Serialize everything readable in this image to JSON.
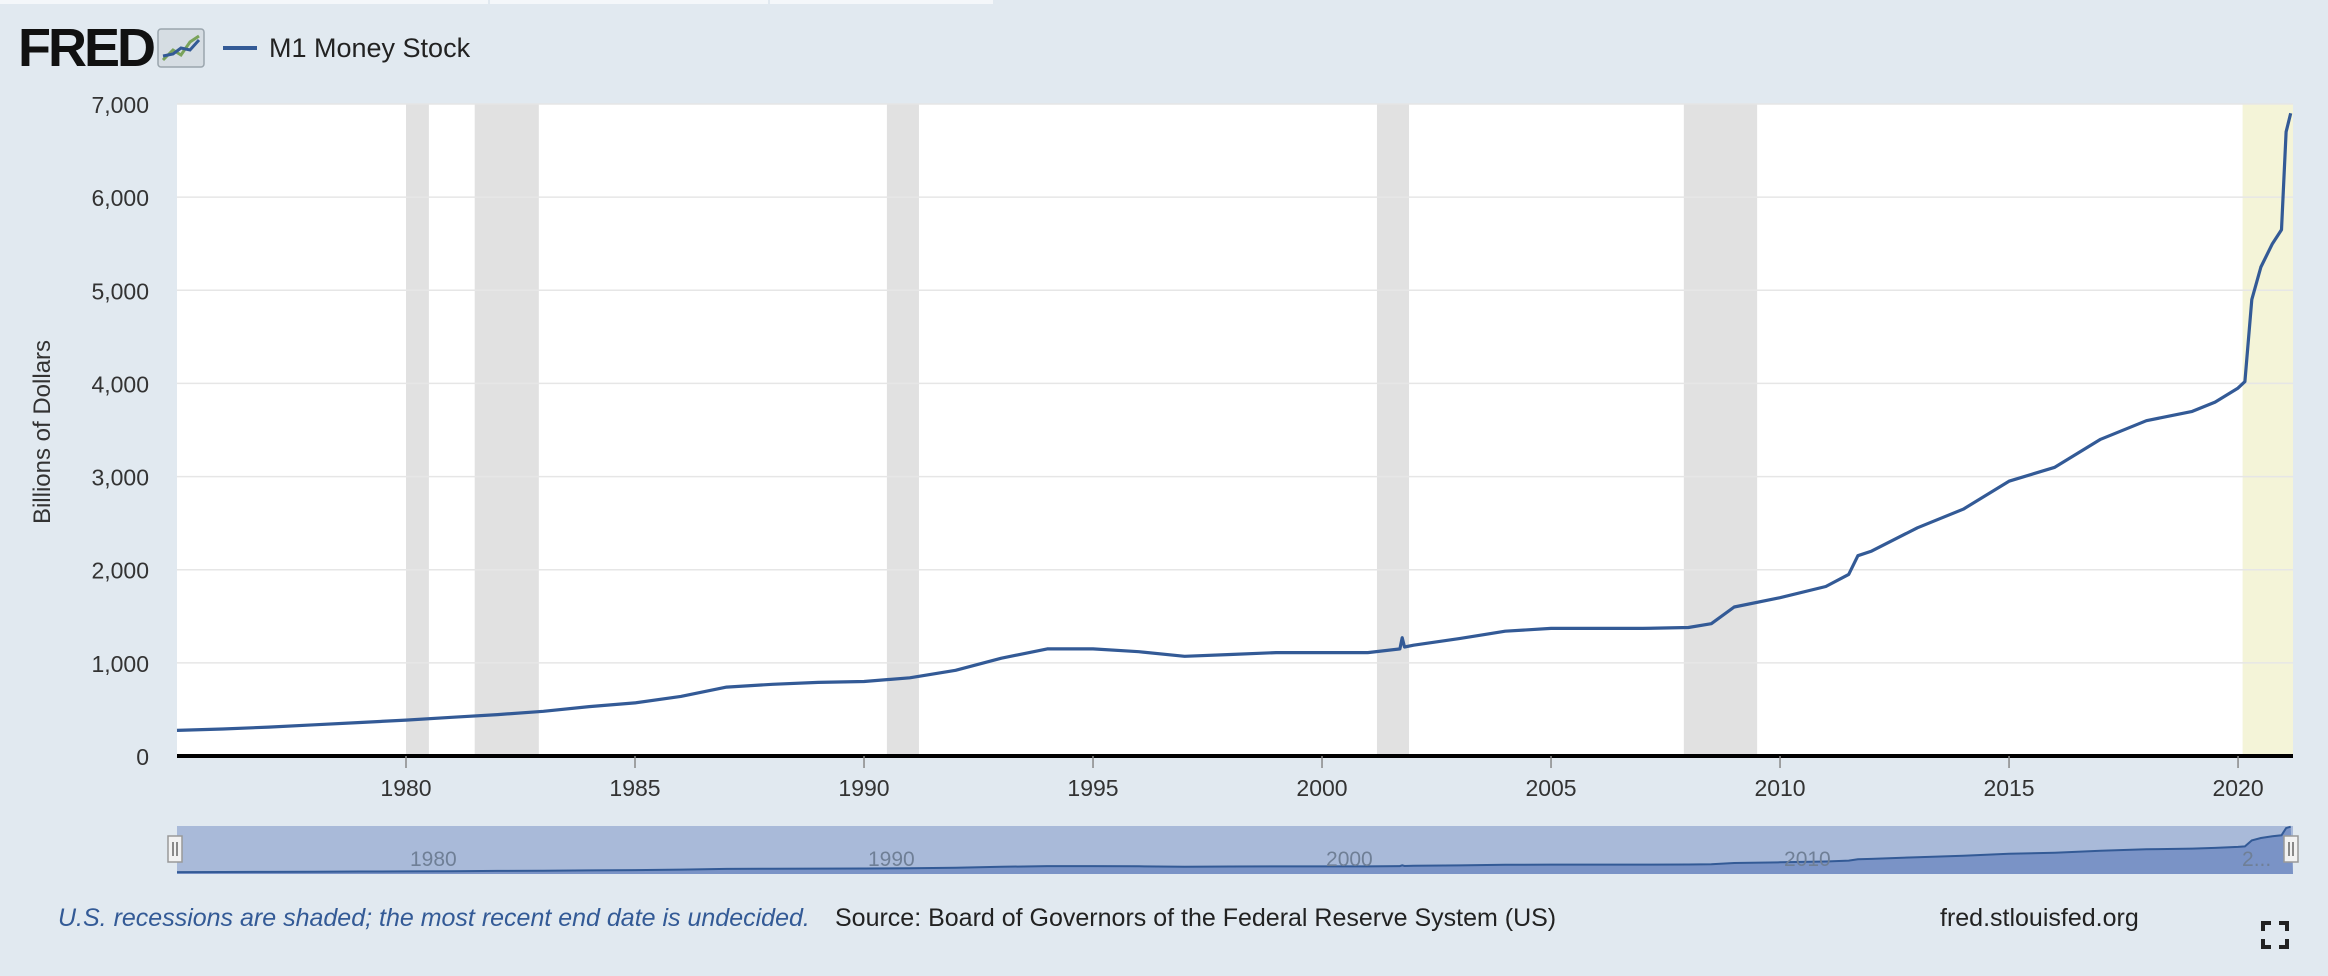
{
  "header": {
    "logo_text": "FRED",
    "series_label": "M1 Money Stock"
  },
  "footer": {
    "recession_note": "U.S. recessions are shaded; the most recent end date is undecided.",
    "source": "Source: Board of Governors of the Federal Reserve System (US)",
    "site": "fred.stlouisfed.org"
  },
  "colors": {
    "series": "#335a96",
    "recession": "#e1e1e1",
    "recent_recession": "#f4f4d8",
    "navigator_fill": "#a9bad9",
    "note_text": "#335a96"
  },
  "icons": {
    "logo_graph": "line-chart-icon",
    "fullscreen": "fullscreen-icon",
    "handles": "navigator-handle-icon"
  },
  "chart_data": {
    "type": "line",
    "title": "",
    "ylabel": "Billions of Dollars",
    "xlabel": "",
    "xlim": [
      1975.0,
      2021.2
    ],
    "ylim": [
      0,
      7000
    ],
    "yticks": [
      0,
      1000,
      2000,
      3000,
      4000,
      5000,
      6000,
      7000
    ],
    "ytick_labels": [
      "0",
      "1,000",
      "2,000",
      "3,000",
      "4,000",
      "5,000",
      "6,000",
      "7,000"
    ],
    "xticks": [
      1980,
      1985,
      1990,
      1995,
      2000,
      2005,
      2010,
      2015,
      2020
    ],
    "xtick_labels": [
      "1980",
      "1985",
      "1990",
      "1995",
      "2000",
      "2005",
      "2010",
      "2015",
      "2020"
    ],
    "navigator_labels": [
      "1980",
      "1990",
      "2000",
      "2010",
      "2..."
    ],
    "grid": true,
    "legend": "top-left",
    "recessions": [
      {
        "start": 1980.0,
        "end": 1980.5
      },
      {
        "start": 1981.5,
        "end": 1982.9
      },
      {
        "start": 1990.5,
        "end": 1991.2
      },
      {
        "start": 2001.2,
        "end": 2001.9
      },
      {
        "start": 2007.9,
        "end": 2009.5
      },
      {
        "start": 2020.1,
        "end": 2021.2,
        "recent": true
      }
    ],
    "series": [
      {
        "name": "M1 Money Stock",
        "x": [
          1975.0,
          1976.0,
          1977.0,
          1978.0,
          1979.0,
          1980.0,
          1981.0,
          1982.0,
          1983.0,
          1984.0,
          1985.0,
          1986.0,
          1987.0,
          1988.0,
          1989.0,
          1990.0,
          1991.0,
          1992.0,
          1993.0,
          1994.0,
          1995.0,
          1996.0,
          1997.0,
          1998.0,
          1999.0,
          2000.0,
          2001.0,
          2001.7,
          2001.75,
          2001.8,
          2002.0,
          2003.0,
          2004.0,
          2005.0,
          2006.0,
          2007.0,
          2008.0,
          2008.5,
          2009.0,
          2010.0,
          2011.0,
          2011.5,
          2011.7,
          2012.0,
          2013.0,
          2014.0,
          2015.0,
          2016.0,
          2017.0,
          2018.0,
          2019.0,
          2019.5,
          2020.0,
          2020.15,
          2020.3,
          2020.5,
          2020.75,
          2020.95,
          2021.05,
          2021.15
        ],
        "values": [
          275,
          290,
          310,
          335,
          360,
          385,
          415,
          445,
          480,
          530,
          570,
          640,
          740,
          770,
          790,
          800,
          840,
          920,
          1050,
          1150,
          1150,
          1120,
          1070,
          1090,
          1110,
          1110,
          1110,
          1150,
          1270,
          1170,
          1190,
          1260,
          1340,
          1370,
          1370,
          1370,
          1380,
          1420,
          1600,
          1700,
          1820,
          1950,
          2150,
          2200,
          2450,
          2650,
          2950,
          3100,
          3400,
          3600,
          3700,
          3800,
          3950,
          4020,
          4900,
          5250,
          5500,
          5650,
          6700,
          6900
        ]
      }
    ]
  }
}
